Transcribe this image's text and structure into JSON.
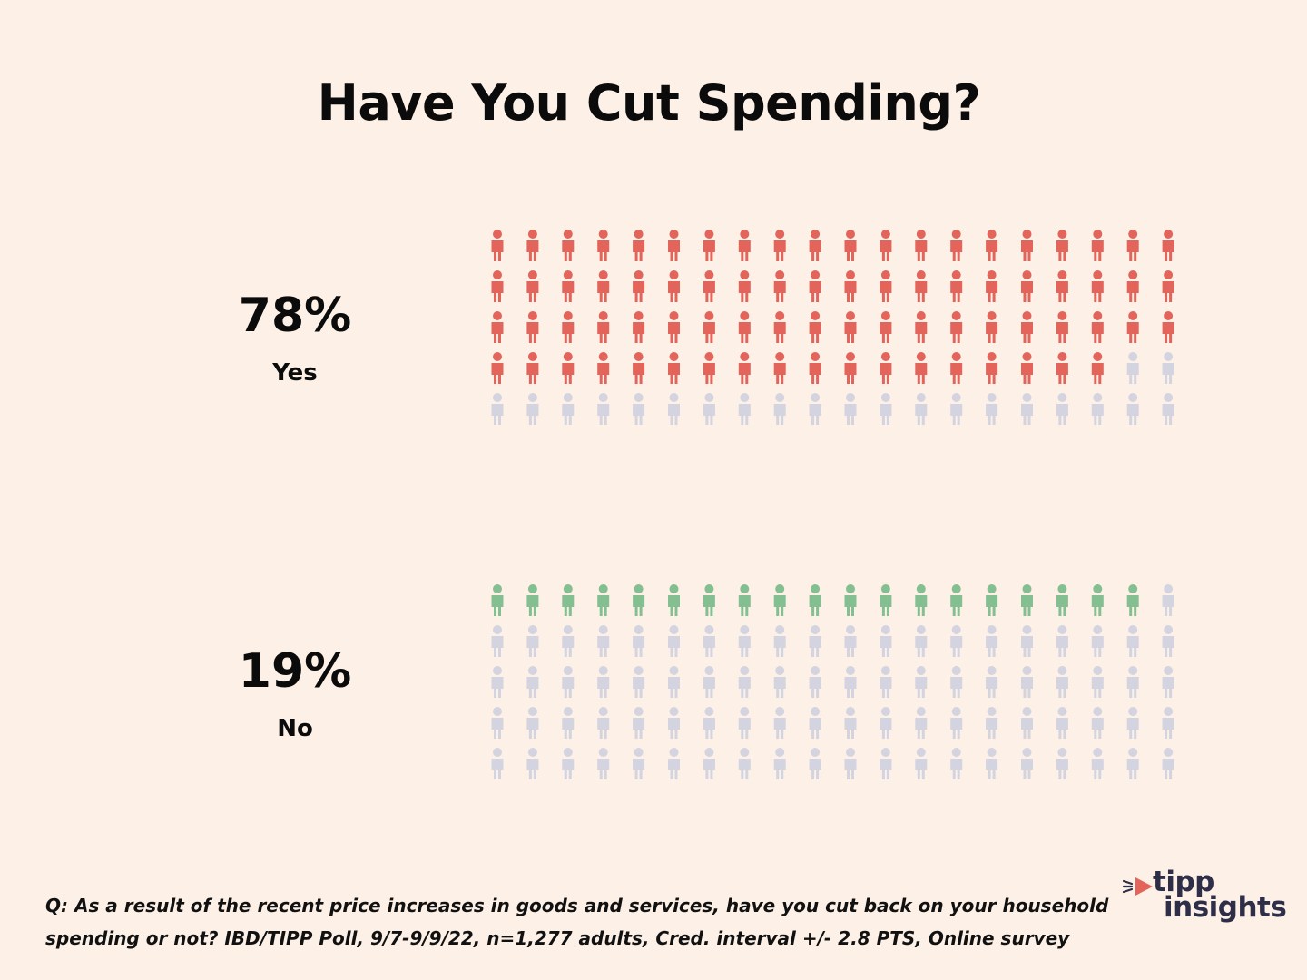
{
  "title": "Have You Cut Spending?",
  "chart_data": {
    "type": "pictogram",
    "title": "Have You Cut Spending?",
    "icons_per_chart": 100,
    "grid_columns": 20,
    "grid_rows": 5,
    "series": [
      {
        "name": "Yes",
        "value": 78,
        "percent_label": "78%",
        "filled_color": "#e2645a"
      },
      {
        "name": "No",
        "value": 19,
        "percent_label": "19%",
        "filled_color": "#84bf92"
      }
    ],
    "empty_color": "#d3d4e0"
  },
  "footnote": {
    "line1": "Q: As a result of the recent price increases in goods and services, have you cut back on your household",
    "line2": "spending or not?  IBD/TIPP Poll, 9/7-9/9/22, n=1,277 adults, Cred. interval +/- 2.8 PTS, Online survey"
  },
  "logo": {
    "line1": "tipp",
    "line2": "insights",
    "arrow_color": "#e2645a",
    "text_color": "#2e2e48"
  },
  "colors": {
    "background": "#fdf0e6"
  }
}
